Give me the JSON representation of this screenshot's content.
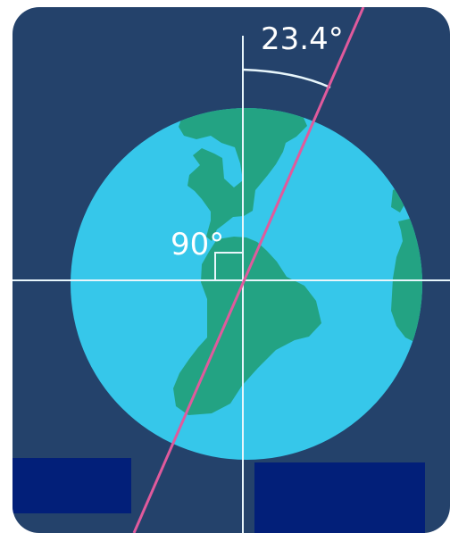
{
  "diagram": {
    "tilt_label": "23.4°",
    "tilt_degrees": 23.4,
    "right_angle_label": "90°"
  },
  "colors": {
    "background": "#24426b",
    "ocean": "#36c7ea",
    "land": "#23a383",
    "axis_lines": "#e8f6fb",
    "tilt_axis": "#e05a9c",
    "tilt_arc": "#e8f6fb",
    "label_boxes": "#021f79"
  }
}
